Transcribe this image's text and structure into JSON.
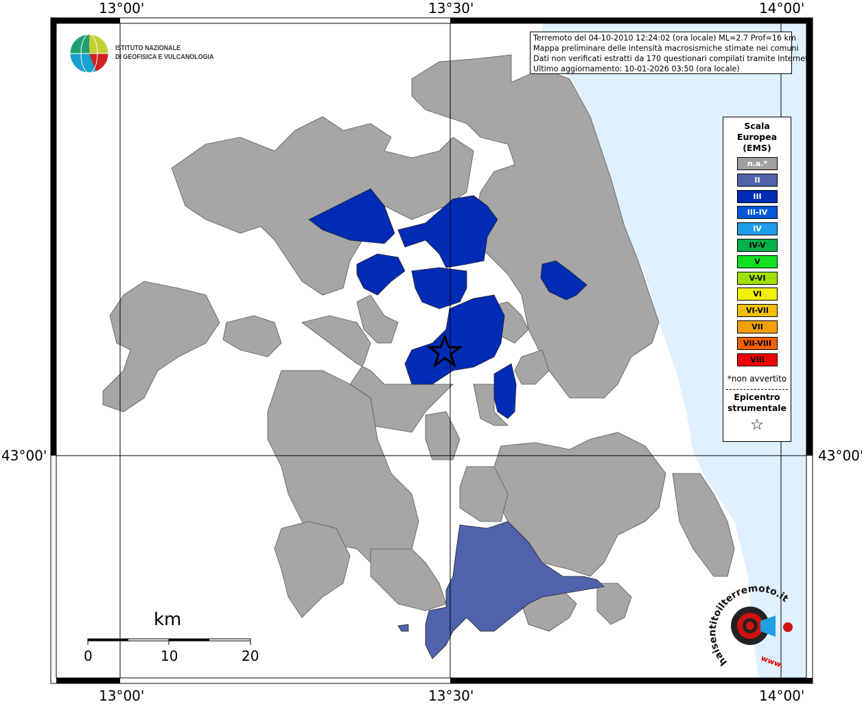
{
  "map": {
    "coords": {
      "top": [
        "13°00'",
        "13°30'",
        "14°00'"
      ],
      "bottom": [
        "13°00'",
        "13°30'",
        "14°00'"
      ],
      "left": "43°00'",
      "right": "43°00'"
    },
    "info_lines": [
      "Terremoto del 04-10-2010 12:24:02 (ora locale) ML=2.7 Prof=16 km",
      "Mappa preliminare delle intensità macrosismiche stimate nei comuni",
      "Dati non verificati estratti da 170 questionari compilati tramite Internet.",
      "Ultimo aggiornamento: 10-01-2026 03:50 (ora locale)"
    ],
    "logo": {
      "line1": "ISTITUTO NAZIONALE",
      "line2": "DI GEOFISICA E VULCANOLOGIA"
    },
    "legend": {
      "title": "Scala\nEuropea\n(EMS)",
      "items": [
        {
          "label": "n.a.*",
          "color": "#a0a0a0"
        },
        {
          "label": "II",
          "color": "#4f63ad"
        },
        {
          "label": "III",
          "color": "#002bb5"
        },
        {
          "label": "III-IV",
          "color": "#0058d8"
        },
        {
          "label": "IV",
          "color": "#1c9de8"
        },
        {
          "label": "IV-V",
          "color": "#00b04a"
        },
        {
          "label": "V",
          "color": "#10e020"
        },
        {
          "label": "V-VI",
          "color": "#a0e000"
        },
        {
          "label": "VI",
          "color": "#f0f000"
        },
        {
          "label": "VI-VII",
          "color": "#f0c000"
        },
        {
          "label": "VII",
          "color": "#f0a000"
        },
        {
          "label": "VII-VIII",
          "color": "#f06000"
        },
        {
          "label": "VIII",
          "color": "#f00000"
        }
      ],
      "note": "*non avvertito",
      "epicenter_label": "Epicentro\nstrumentale",
      "epicenter_symbol": "☆"
    },
    "scale": {
      "title": "km",
      "labels": [
        "0",
        "10",
        "20"
      ]
    },
    "watermark": {
      "text": "haisentitoilterremoto.it",
      "url": "www."
    },
    "colors": {
      "sea": "#dff0ff",
      "not_felt": "#a6a6a6",
      "ems_II": "#4f63ad",
      "ems_III": "#002bb5"
    }
  }
}
